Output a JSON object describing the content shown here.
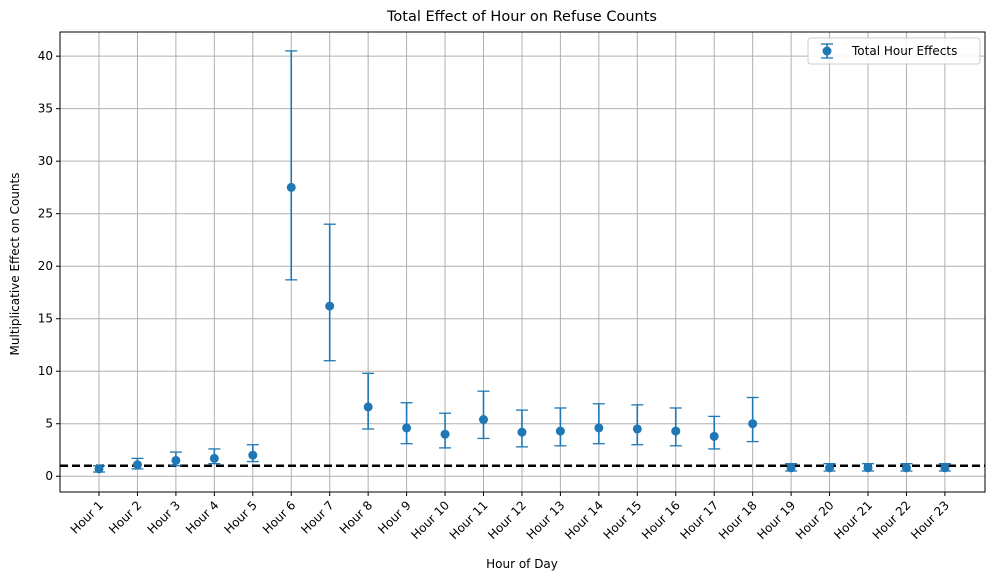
{
  "chart_data": {
    "type": "scatter",
    "title": "Total Effect of Hour on Refuse Counts",
    "xlabel": "Hour of Day",
    "ylabel": "Multiplicative Effect on Counts",
    "categories": [
      "Hour 1",
      "Hour 2",
      "Hour 3",
      "Hour 4",
      "Hour 5",
      "Hour 6",
      "Hour 7",
      "Hour 8",
      "Hour 9",
      "Hour 10",
      "Hour 11",
      "Hour 12",
      "Hour 13",
      "Hour 14",
      "Hour 15",
      "Hour 16",
      "Hour 17",
      "Hour 18",
      "Hour 19",
      "Hour 20",
      "Hour 21",
      "Hour 22",
      "Hour 23"
    ],
    "series": [
      {
        "name": "Total Hour Effects",
        "values": [
          0.7,
          1.1,
          1.5,
          1.7,
          2.0,
          27.5,
          16.2,
          6.6,
          4.6,
          4.0,
          5.4,
          4.2,
          4.3,
          4.6,
          4.5,
          4.3,
          3.8,
          5.0,
          0.8,
          0.8,
          0.8,
          0.8,
          0.8
        ],
        "lower": [
          0.4,
          0.7,
          1.0,
          1.2,
          1.4,
          18.7,
          11.0,
          4.5,
          3.1,
          2.7,
          3.6,
          2.8,
          2.9,
          3.1,
          3.0,
          2.9,
          2.6,
          3.3,
          0.5,
          0.5,
          0.5,
          0.5,
          0.5
        ],
        "upper": [
          1.0,
          1.7,
          2.3,
          2.6,
          3.0,
          40.5,
          24.0,
          9.8,
          7.0,
          6.0,
          8.1,
          6.3,
          6.5,
          6.9,
          6.8,
          6.5,
          5.7,
          7.5,
          1.2,
          1.2,
          1.2,
          1.2,
          1.2
        ]
      }
    ],
    "reference_line": {
      "y": 1.0,
      "style": "dashed",
      "color": "#000000"
    },
    "ylim": [
      -1.5,
      42.3
    ],
    "yticks": [
      0,
      5,
      10,
      15,
      20,
      25,
      30,
      35,
      40
    ],
    "grid": true,
    "legend": {
      "position": "top-right"
    },
    "colors": {
      "series": "#1f77b4"
    }
  }
}
